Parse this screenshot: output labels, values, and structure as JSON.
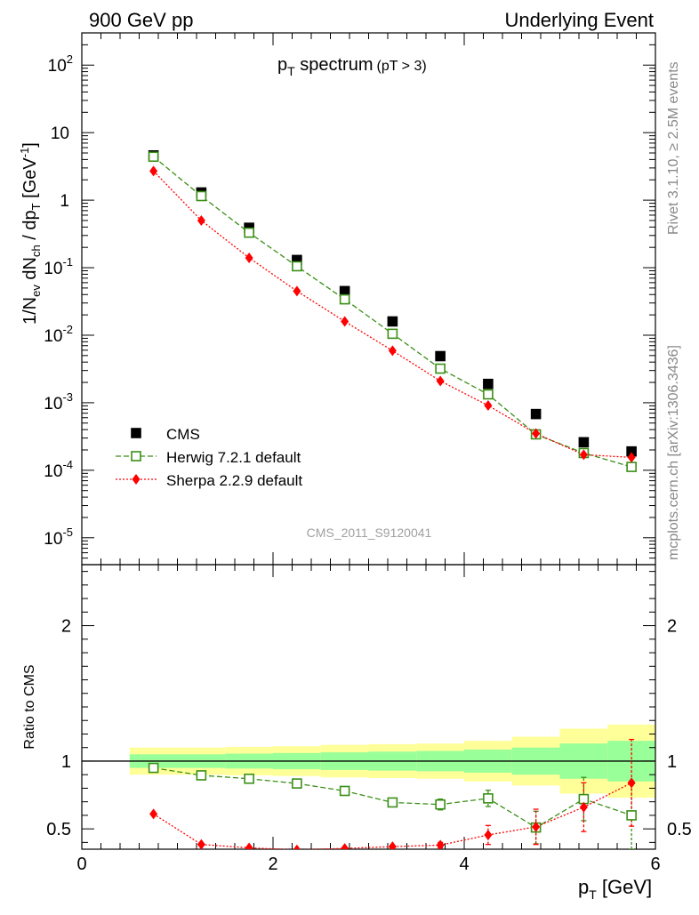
{
  "header": {
    "left": "900 GeV pp",
    "right": "Underlying Event"
  },
  "side": {
    "rivet": "Rivet 3.1.10, ≥ 2.5M events",
    "mcplots": "mcplots.cern.ch [arXiv:1306.3436]"
  },
  "watermark": "CMS_2011_S9120041",
  "main_title": {
    "p": "p",
    "sub": "T",
    "rest": " spectrum",
    "cut": "(pT >  3)"
  },
  "ylabel_main": {
    "a": "1/N",
    "a_sub": "ev",
    "b": " dN",
    "b_sub": "ch",
    "c": " / dp",
    "c_sub": "T",
    "d": " [GeV",
    "d_sup": "-1",
    "e": "]"
  },
  "ylabel_ratio": "Ratio to CMS",
  "xlabel": {
    "p": "p",
    "sub": "T",
    "rest": " [GeV]"
  },
  "colors": {
    "cms": "#000000",
    "herwig": "#3a8f16",
    "sherpa": "#ff0000",
    "band_yellow": "#ffff99",
    "band_green": "#99ff99"
  },
  "chart_data": [
    {
      "type": "scatter",
      "panel": "spectrum",
      "yscale": "log",
      "xlim": [
        0,
        6
      ],
      "ylim": [
        4e-06,
        300
      ],
      "y_ticks": [
        {
          "v": 1e-05,
          "base": "10",
          "exp": "-5"
        },
        {
          "v": 0.0001,
          "base": "10",
          "exp": "-4"
        },
        {
          "v": 0.001,
          "base": "10",
          "exp": "-3"
        },
        {
          "v": 0.01,
          "base": "10",
          "exp": "-2"
        },
        {
          "v": 0.1,
          "base": "10",
          "exp": "-1"
        },
        {
          "v": 1,
          "base": "1",
          "exp": ""
        },
        {
          "v": 10,
          "base": "10",
          "exp": ""
        },
        {
          "v": 100,
          "base": "10",
          "exp": "2"
        }
      ],
      "legend_position": "bottom-left",
      "series": [
        {
          "name": "CMS",
          "style": "square",
          "x": [
            0.75,
            1.25,
            1.75,
            2.25,
            2.75,
            3.25,
            3.75,
            4.25,
            4.75,
            5.25,
            5.75
          ],
          "y": [
            4.6,
            1.3,
            0.39,
            0.13,
            0.045,
            0.016,
            0.0049,
            0.0019,
            0.00068,
            0.00026,
            0.00019
          ]
        },
        {
          "name": "Herwig 7.2.1 default",
          "style": "open-square",
          "x": [
            0.75,
            1.25,
            1.75,
            2.25,
            2.75,
            3.25,
            3.75,
            4.25,
            4.75,
            5.25,
            5.75
          ],
          "y": [
            4.4,
            1.15,
            0.33,
            0.105,
            0.034,
            0.0105,
            0.0032,
            0.00133,
            0.00034,
            0.00018,
            0.000112
          ]
        },
        {
          "name": "Sherpa 2.2.9 default",
          "style": "diamond",
          "x": [
            0.75,
            1.25,
            1.75,
            2.25,
            2.75,
            3.25,
            3.75,
            4.25,
            4.75,
            5.25,
            5.75
          ],
          "y": [
            2.7,
            0.5,
            0.14,
            0.045,
            0.016,
            0.0059,
            0.0021,
            0.00091,
            0.00035,
            0.00017,
            0.000155
          ]
        }
      ]
    },
    {
      "type": "scatter",
      "panel": "ratio",
      "xlim": [
        0,
        6
      ],
      "ylim": [
        0.35,
        2.45
      ],
      "x_ticks": [
        "0",
        "2",
        "4",
        "6"
      ],
      "y_ticks": [
        "0.5",
        "1",
        "2"
      ],
      "band_edges": [
        0.5,
        1.0,
        1.5,
        2.0,
        2.5,
        3.0,
        3.5,
        4.0,
        4.5,
        5.0,
        5.5,
        6.0
      ],
      "band_yellow": [
        0.1,
        0.1,
        0.105,
        0.11,
        0.12,
        0.125,
        0.13,
        0.15,
        0.18,
        0.24,
        0.27
      ],
      "band_green": [
        0.05,
        0.05,
        0.055,
        0.06,
        0.065,
        0.07,
        0.075,
        0.085,
        0.1,
        0.13,
        0.15
      ],
      "series": [
        {
          "name": "Herwig 7.2.1 default",
          "style": "open-square",
          "x": [
            0.75,
            1.25,
            1.75,
            2.25,
            2.75,
            3.25,
            3.75,
            4.25,
            4.75,
            5.25,
            5.75
          ],
          "y": [
            0.95,
            0.895,
            0.87,
            0.835,
            0.78,
            0.695,
            0.68,
            0.725,
            0.51,
            0.72,
            0.6
          ],
          "err": [
            0.005,
            0.005,
            0.005,
            0.007,
            0.01,
            0.015,
            0.04,
            0.06,
            0.12,
            0.16,
            0.25
          ]
        },
        {
          "name": "Sherpa 2.2.9 default",
          "style": "diamond",
          "x": [
            0.75,
            1.25,
            1.75,
            2.25,
            2.75,
            3.25,
            3.75,
            4.25,
            4.75,
            5.25,
            5.75
          ],
          "y": [
            0.61,
            0.385,
            0.36,
            0.345,
            0.356,
            0.369,
            0.38,
            0.455,
            0.515,
            0.66,
            0.84
          ],
          "err": [
            0.0,
            0.0,
            0.0,
            0.0,
            0.0,
            0.0,
            0.02,
            0.07,
            0.13,
            0.18,
            0.32
          ]
        }
      ]
    }
  ]
}
